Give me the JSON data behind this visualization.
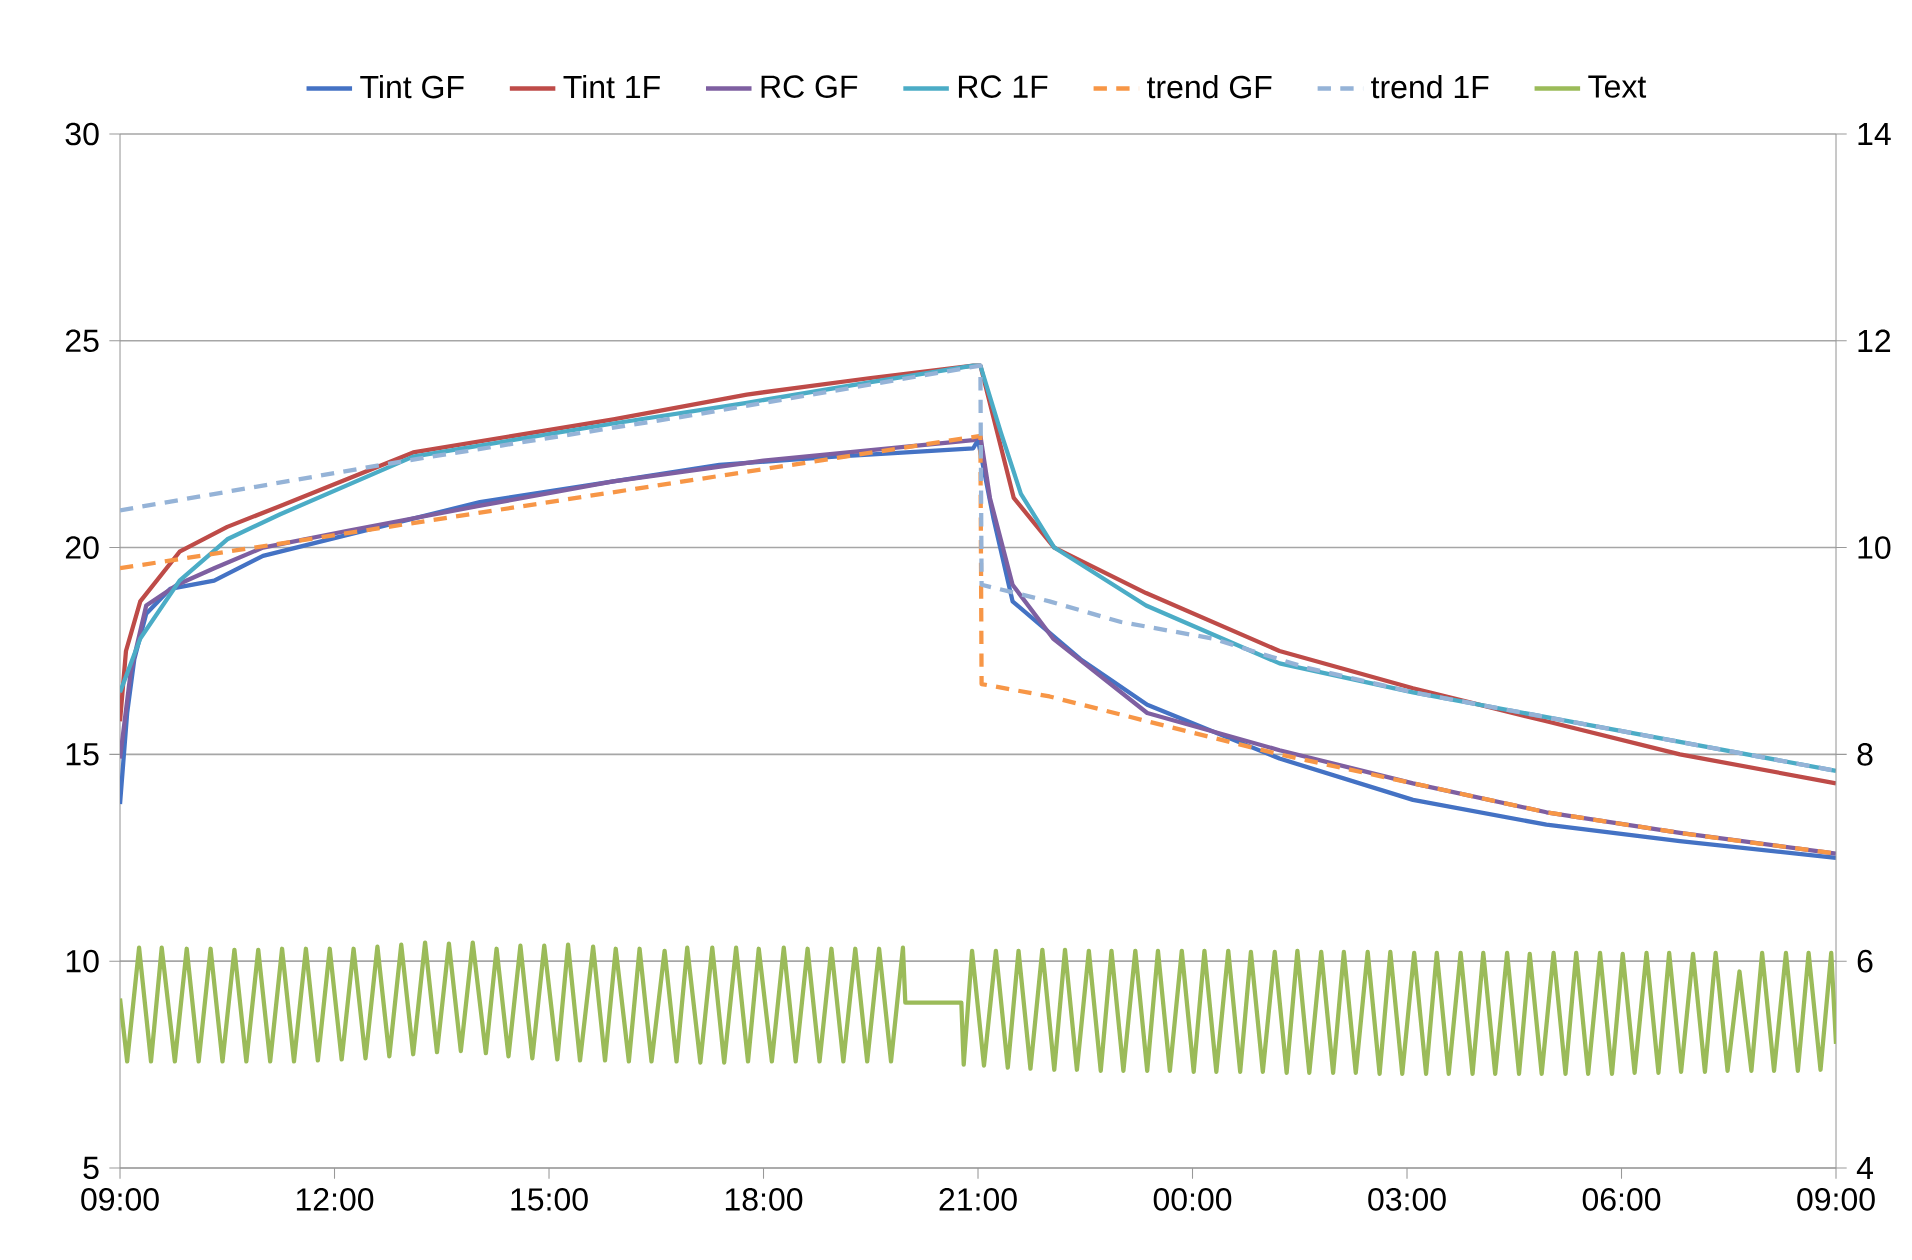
{
  "chart_data": {
    "type": "line",
    "xlim": [
      "2000-01-01T09:00",
      "2000-01-02T09:00"
    ],
    "ylim": [
      5,
      30
    ],
    "y2lim": [
      4,
      14
    ],
    "xticks": [
      {
        "value": "2000-01-01T09:00",
        "label": "09:00"
      },
      {
        "value": "2000-01-01T12:00",
        "label": "12:00"
      },
      {
        "value": "2000-01-01T15:00",
        "label": "15:00"
      },
      {
        "value": "2000-01-01T18:00",
        "label": "18:00"
      },
      {
        "value": "2000-01-01T21:00",
        "label": "21:00"
      },
      {
        "value": "2000-01-02T00:00",
        "label": "00:00"
      },
      {
        "value": "2000-01-02T03:00",
        "label": "03:00"
      },
      {
        "value": "2000-01-02T06:00",
        "label": "06:00"
      },
      {
        "value": "2000-01-02T09:00",
        "label": "09:00"
      }
    ],
    "yticks": [
      5,
      10,
      15,
      20,
      25,
      30
    ],
    "y2ticks": [
      4,
      6,
      8,
      10,
      12,
      14
    ],
    "grid": "y",
    "legend": "top",
    "marker": "none",
    "series": [
      {
        "name": "Tint GF",
        "color": "#4472c4",
        "line_style": "solid",
        "x": [
          "2000-01-01T09:00",
          "2000-01-01T09:06",
          "2000-01-01T09:12",
          "2000-01-01T09:22",
          "2000-01-01T09:42",
          "2000-01-01T10:19",
          "2000-01-01T11:00",
          "2000-01-01T12:10",
          "2000-01-01T14:02",
          "2000-01-01T15:54",
          "2000-01-01T17:23",
          "2000-01-01T19:00",
          "2000-01-01T20:56",
          "2000-01-01T21:00",
          "2000-01-01T21:13",
          "2000-01-01T21:29",
          "2000-01-01T22:26",
          "2000-01-01T23:22",
          "2000-01-02T01:13",
          "2000-01-02T03:05",
          "2000-01-02T04:57",
          "2000-01-02T06:49",
          "2000-01-02T09:00"
        ],
        "values": [
          13.8,
          16.0,
          17.3,
          18.4,
          19.0,
          19.2,
          19.8,
          20.3,
          21.1,
          21.6,
          22.0,
          22.2,
          22.4,
          22.6,
          20.7,
          18.7,
          17.3,
          16.2,
          14.9,
          13.9,
          13.3,
          12.9,
          12.5
        ]
      },
      {
        "name": "Tint 1F",
        "color": "#be4b48",
        "line_style": "solid",
        "x": [
          "2000-01-01T09:00",
          "2000-01-01T09:05",
          "2000-01-01T09:17",
          "2000-01-01T09:50",
          "2000-01-01T10:30",
          "2000-01-01T11:14",
          "2000-01-01T13:06",
          "2000-01-01T15:54",
          "2000-01-01T17:46",
          "2000-01-01T19:30",
          "2000-01-01T20:56",
          "2000-01-01T21:02",
          "2000-01-01T21:30",
          "2000-01-01T22:04",
          "2000-01-01T23:21",
          "2000-01-02T01:13",
          "2000-01-02T03:05",
          "2000-01-02T04:57",
          "2000-01-02T06:49",
          "2000-01-02T09:00"
        ],
        "values": [
          15.8,
          17.5,
          18.7,
          19.9,
          20.5,
          21.0,
          22.3,
          23.1,
          23.7,
          24.1,
          24.4,
          24.4,
          21.2,
          20.0,
          18.9,
          17.5,
          16.6,
          15.8,
          15.0,
          14.3
        ]
      },
      {
        "name": "RC GF",
        "color": "#7e5fa1",
        "line_style": "solid",
        "x": [
          "2000-01-01T09:00",
          "2000-01-01T09:09",
          "2000-01-01T09:22",
          "2000-01-01T09:48",
          "2000-01-01T10:19",
          "2000-01-01T11:00",
          "2000-01-01T12:10",
          "2000-01-01T14:00",
          "2000-01-01T15:54",
          "2000-01-01T18:00",
          "2000-01-01T20:56",
          "2000-01-01T21:02",
          "2000-01-01T21:10",
          "2000-01-01T21:29",
          "2000-01-01T22:03",
          "2000-01-01T23:22",
          "2000-01-02T01:13",
          "2000-01-02T03:05",
          "2000-01-02T04:57",
          "2000-01-02T06:49",
          "2000-01-02T09:00"
        ],
        "values": [
          14.9,
          17.0,
          18.6,
          19.1,
          19.5,
          20.0,
          20.4,
          21.0,
          21.6,
          22.1,
          22.6,
          22.7,
          21.2,
          19.1,
          17.8,
          16.0,
          15.1,
          14.3,
          13.6,
          13.1,
          12.6
        ]
      },
      {
        "name": "RC 1F",
        "color": "#4bacc6",
        "line_style": "solid",
        "x": [
          "2000-01-01T09:00",
          "2000-01-01T09:17",
          "2000-01-01T09:50",
          "2000-01-01T10:30",
          "2000-01-01T11:14",
          "2000-01-01T13:06",
          "2000-01-01T15:54",
          "2000-01-01T17:46",
          "2000-01-01T19:30",
          "2000-01-01T20:56",
          "2000-01-01T21:02",
          "2000-01-01T21:19",
          "2000-01-01T21:36",
          "2000-01-01T22:04",
          "2000-01-01T23:21",
          "2000-01-02T01:13",
          "2000-01-02T03:05",
          "2000-01-02T04:57",
          "2000-01-02T06:49",
          "2000-01-02T09:00"
        ],
        "values": [
          16.5,
          17.8,
          19.2,
          20.2,
          20.8,
          22.2,
          23.0,
          23.5,
          24.0,
          24.4,
          24.4,
          22.8,
          21.3,
          20.0,
          18.6,
          17.2,
          16.5,
          15.9,
          15.3,
          14.6
        ]
      },
      {
        "name": "trend GF",
        "color": "#f79646",
        "line_style": "dashed",
        "x": [
          "2000-01-01T09:00",
          "2000-01-01T15:00",
          "2000-01-01T21:02",
          "2000-01-01T21:03",
          "2000-01-01T22:00",
          "2000-01-01T23:22",
          "2000-01-02T01:13",
          "2000-01-02T03:05",
          "2000-01-02T04:57",
          "2000-01-02T06:49",
          "2000-01-02T09:00"
        ],
        "values": [
          19.5,
          21.1,
          22.7,
          16.7,
          16.4,
          15.8,
          15.0,
          14.3,
          13.6,
          13.1,
          12.6
        ]
      },
      {
        "name": "trend 1F",
        "color": "#95b3d7",
        "line_style": "dashed",
        "x": [
          "2000-01-01T09:00",
          "2000-01-01T13:00",
          "2000-01-01T17:00",
          "2000-01-01T21:02",
          "2000-01-01T21:03",
          "2000-01-01T22:00",
          "2000-01-01T23:00",
          "2000-01-02T00:17",
          "2000-01-02T01:35",
          "2000-01-02T03:05",
          "2000-01-02T04:57",
          "2000-01-02T06:49",
          "2000-01-02T09:00"
        ],
        "values": [
          20.9,
          22.1,
          23.2,
          24.4,
          19.1,
          18.7,
          18.2,
          17.8,
          17.1,
          16.5,
          15.9,
          15.3,
          14.6
        ]
      },
      {
        "name": "Text",
        "color": "#9bbb59",
        "line_style": "solid",
        "axis": "y2",
        "x": [
          "2000-01-01T09:00",
          "2000-01-01T09:06",
          "2000-01-01T09:16",
          "2000-01-01T09:26",
          "2000-01-01T09:35",
          "2000-01-01T09:46",
          "2000-01-01T09:56",
          "2000-01-01T10:06",
          "2000-01-01T10:16",
          "2000-01-01T10:26",
          "2000-01-01T10:36",
          "2000-01-01T10:46",
          "2000-01-01T10:56",
          "2000-01-01T11:06",
          "2000-01-01T11:16",
          "2000-01-01T11:26",
          "2000-01-01T11:36",
          "2000-01-01T11:46",
          "2000-01-01T11:56",
          "2000-01-01T12:06",
          "2000-01-01T12:16",
          "2000-01-01T12:26",
          "2000-01-01T12:36",
          "2000-01-01T12:46",
          "2000-01-01T12:56",
          "2000-01-01T13:06",
          "2000-01-01T13:16",
          "2000-01-01T13:26",
          "2000-01-01T13:36",
          "2000-01-01T13:46",
          "2000-01-01T13:56",
          "2000-01-01T14:07",
          "2000-01-01T14:16",
          "2000-01-01T14:26",
          "2000-01-01T14:36",
          "2000-01-01T14:46",
          "2000-01-01T14:56",
          "2000-01-01T15:07",
          "2000-01-01T15:16",
          "2000-01-01T15:26",
          "2000-01-01T15:37",
          "2000-01-01T15:47",
          "2000-01-01T15:56",
          "2000-01-01T16:07",
          "2000-01-01T16:16",
          "2000-01-01T16:26",
          "2000-01-01T16:37",
          "2000-01-01T16:47",
          "2000-01-01T16:56",
          "2000-01-01T17:07",
          "2000-01-01T17:17",
          "2000-01-01T17:27",
          "2000-01-01T17:37",
          "2000-01-01T17:47",
          "2000-01-01T17:56",
          "2000-01-01T18:07",
          "2000-01-01T18:17",
          "2000-01-01T18:27",
          "2000-01-01T18:37",
          "2000-01-01T18:47",
          "2000-01-01T18:57",
          "2000-01-01T19:07",
          "2000-01-01T19:17",
          "2000-01-01T19:27",
          "2000-01-01T19:37",
          "2000-01-01T19:47",
          "2000-01-01T19:57",
          "2000-01-01T19:59",
          "2000-01-01T20:46",
          "2000-01-01T20:48",
          "2000-01-01T20:55",
          "2000-01-01T21:05",
          "2000-01-01T21:15",
          "2000-01-01T21:25",
          "2000-01-01T21:34",
          "2000-01-01T21:44",
          "2000-01-01T21:54",
          "2000-01-01T22:04",
          "2000-01-01T22:13",
          "2000-01-01T22:23",
          "2000-01-01T22:33",
          "2000-01-01T22:43",
          "2000-01-01T22:52",
          "2000-01-01T23:02",
          "2000-01-01T23:12",
          "2000-01-01T23:22",
          "2000-01-01T23:31",
          "2000-01-01T23:41",
          "2000-01-01T23:51",
          "2000-01-02T00:01",
          "2000-01-02T00:10",
          "2000-01-02T00:20",
          "2000-01-02T00:30",
          "2000-01-02T00:40",
          "2000-01-02T00:49",
          "2000-01-02T00:59",
          "2000-01-02T01:09",
          "2000-01-02T01:19",
          "2000-01-02T01:28",
          "2000-01-02T01:38",
          "2000-01-02T01:48",
          "2000-01-02T01:58",
          "2000-01-02T02:07",
          "2000-01-02T02:17",
          "2000-01-02T02:27",
          "2000-01-02T02:37",
          "2000-01-02T02:46",
          "2000-01-02T02:56",
          "2000-01-02T03:06",
          "2000-01-02T03:16",
          "2000-01-02T03:25",
          "2000-01-02T03:35",
          "2000-01-02T03:45",
          "2000-01-02T03:55",
          "2000-01-02T04:04",
          "2000-01-02T04:14",
          "2000-01-02T04:24",
          "2000-01-02T04:34",
          "2000-01-02T04:43",
          "2000-01-02T04:53",
          "2000-01-02T05:03",
          "2000-01-02T05:13",
          "2000-01-02T05:22",
          "2000-01-02T05:32",
          "2000-01-02T05:42",
          "2000-01-02T05:52",
          "2000-01-02T06:01",
          "2000-01-02T06:11",
          "2000-01-02T06:21",
          "2000-01-02T06:31",
          "2000-01-02T06:40",
          "2000-01-02T06:50",
          "2000-01-02T07:00",
          "2000-01-02T07:10",
          "2000-01-02T07:19",
          "2000-01-02T07:29",
          "2000-01-02T07:39",
          "2000-01-02T07:49",
          "2000-01-02T07:58",
          "2000-01-02T08:08",
          "2000-01-02T08:18",
          "2000-01-02T08:28",
          "2000-01-02T08:37",
          "2000-01-02T08:47",
          "2000-01-02T08:56",
          "2000-01-02T09:00"
        ],
        "values": [
          5.64,
          5.03,
          6.13,
          5.03,
          6.13,
          5.03,
          6.12,
          5.03,
          6.12,
          5.03,
          6.11,
          5.03,
          6.11,
          5.03,
          6.12,
          5.03,
          6.12,
          5.04,
          6.12,
          5.05,
          6.12,
          5.06,
          6.14,
          5.08,
          6.16,
          5.1,
          6.18,
          5.12,
          6.17,
          5.13,
          6.18,
          5.11,
          6.12,
          5.08,
          6.15,
          5.06,
          6.15,
          5.05,
          6.16,
          5.04,
          6.14,
          5.04,
          6.12,
          5.03,
          6.12,
          5.03,
          6.1,
          5.03,
          6.13,
          5.02,
          6.13,
          5.02,
          6.13,
          5.03,
          6.12,
          5.03,
          6.13,
          5.03,
          6.12,
          5.03,
          6.12,
          5.03,
          6.12,
          5.03,
          6.12,
          5.03,
          6.13,
          5.6,
          5.6,
          5.0,
          6.1,
          4.99,
          6.1,
          4.97,
          6.1,
          4.96,
          6.11,
          4.95,
          6.11,
          4.95,
          6.1,
          4.94,
          6.1,
          4.94,
          6.1,
          4.94,
          6.1,
          4.94,
          6.1,
          4.93,
          6.1,
          4.93,
          6.1,
          4.93,
          6.09,
          4.93,
          6.09,
          4.92,
          6.1,
          4.92,
          6.09,
          4.92,
          6.09,
          4.92,
          6.09,
          4.91,
          6.09,
          4.91,
          6.08,
          4.91,
          6.08,
          4.91,
          6.08,
          4.91,
          6.08,
          4.91,
          6.08,
          4.91,
          6.07,
          4.91,
          6.08,
          4.91,
          6.08,
          4.91,
          6.08,
          4.91,
          6.07,
          4.92,
          6.08,
          4.92,
          6.08,
          4.93,
          6.07,
          4.93,
          6.08,
          4.94,
          5.9,
          4.94,
          6.08,
          4.94,
          6.08,
          4.94,
          6.08,
          4.95,
          6.08,
          5.2
        ]
      }
    ]
  }
}
